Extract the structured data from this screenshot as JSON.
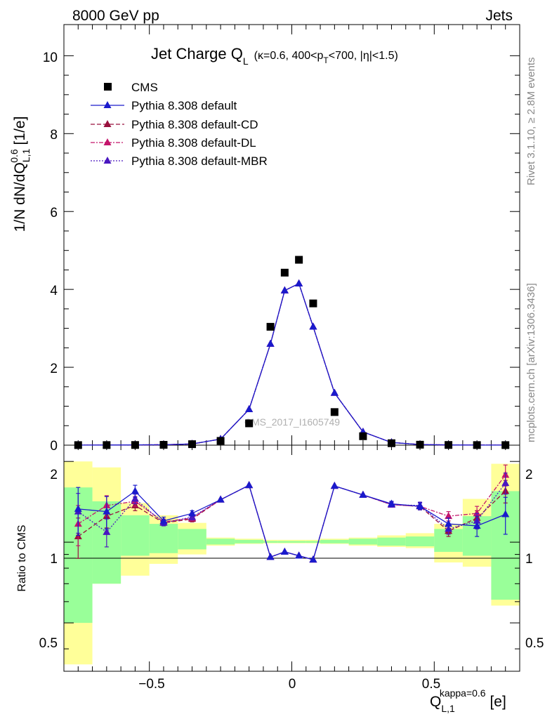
{
  "header": {
    "left": "8000 GeV pp",
    "right": "Jets"
  },
  "side_labels": {
    "rivet": "Rivet 3.1.10, ≥ 2.8M events",
    "mcplots": "mcplots.cern.ch [arXiv:1306.3436]"
  },
  "watermark": "CMS_2017_I1605749",
  "title": {
    "main": "Jet Charge Q",
    "main_sub": "L",
    "p1": "(κ=0.6, 400<p",
    "p1_sub": "T",
    "p2": "<700, |η|<1.5)"
  },
  "yaxis": {
    "main": "1/N dN/dQ",
    "sub": "L,1",
    "sup": "0.6",
    "unit": " [1/e]"
  },
  "ratio_ylabel": "Ratio to CMS",
  "xaxis": {
    "main": "Q",
    "sub": "L,1",
    "sup": "kappa=0.6",
    "unit": " [e]"
  },
  "colors": {
    "cms": "#000000",
    "default": "#1a1acc",
    "cd": "#99103d",
    "dl": "#c4156b",
    "mbr": "#4a17c0",
    "band_yellow": "#ffff99",
    "band_green": "#99ff99"
  },
  "chart_data": {
    "type": "scatter",
    "xlim": [
      -0.8,
      0.8
    ],
    "ylim": [
      0,
      10.8
    ],
    "ratio_ylim": [
      0.33,
      2.3
    ],
    "x_ticks": [
      "−0.5",
      "0",
      "0.5"
    ],
    "y_ticks": [
      "0",
      "2",
      "4",
      "6",
      "8",
      "10"
    ],
    "ratio_ticks": [
      "0.5",
      "1",
      "2"
    ],
    "x": [
      -0.75,
      -0.65,
      -0.55,
      -0.45,
      -0.35,
      -0.25,
      -0.15,
      -0.075,
      -0.025,
      0.025,
      0.075,
      0.15,
      0.25,
      0.35,
      0.45,
      0.55,
      0.65,
      0.75
    ],
    "bin_edges": [
      -0.8,
      -0.7,
      -0.6,
      -0.5,
      -0.4,
      -0.3,
      -0.2,
      -0.1,
      -0.05,
      0.0,
      0.05,
      0.1,
      0.2,
      0.3,
      0.4,
      0.5,
      0.6,
      0.7,
      0.8
    ],
    "series": [
      {
        "key": "cms",
        "name": "CMS",
        "values": [
          0.0015,
          0.0025,
          0.0045,
          0.009,
          0.025,
          0.11,
          0.56,
          3.04,
          4.43,
          4.76,
          3.64,
          0.85,
          0.23,
          0.05,
          0.012,
          0.005,
          0.0025,
          0.0015
        ]
      },
      {
        "key": "default",
        "name": "Pythia 8.308 default",
        "values": [
          0.002,
          0.003,
          0.007,
          0.011,
          0.032,
          0.156,
          0.92,
          2.6,
          3.97,
          4.15,
          3.04,
          1.34,
          0.34,
          0.069,
          0.016,
          0.006,
          0.0029,
          0.0019
        ],
        "ratio": [
          1.33,
          1.3,
          1.55,
          1.2,
          1.28,
          1.44,
          1.63,
          0.88,
          0.92,
          0.89,
          0.86,
          1.62,
          1.5,
          1.39,
          1.36,
          1.17,
          1.15,
          1.27
        ],
        "ratio_err": [
          0.27,
          0.18,
          0.08,
          0.04,
          0.03,
          0.02,
          0.02,
          0.01,
          0.01,
          0.01,
          0.01,
          0.02,
          0.02,
          0.03,
          0.04,
          0.06,
          0.1,
          0.2
        ]
      },
      {
        "key": "cd",
        "name": "Pythia 8.308 default-CD",
        "values": [
          0.0017,
          0.0031,
          0.0062,
          0.0106,
          0.031,
          0.156,
          0.92,
          2.6,
          3.97,
          4.15,
          3.04,
          1.34,
          0.34,
          0.069,
          0.016,
          0.006,
          0.003,
          0.0023
        ],
        "ratio": [
          1.05,
          1.25,
          1.37,
          1.18,
          1.22,
          1.44,
          1.63,
          0.88,
          0.92,
          0.89,
          0.86,
          1.62,
          1.5,
          1.38,
          1.36,
          1.1,
          1.23,
          1.55
        ],
        "ratio_err": [
          0.18,
          0.12,
          0.06,
          0.03,
          0.03,
          0.02,
          0.02,
          0.01,
          0.01,
          0.01,
          0.01,
          0.02,
          0.02,
          0.03,
          0.04,
          0.05,
          0.08,
          0.15
        ]
      },
      {
        "key": "dl",
        "name": "Pythia 8.308 default-DL",
        "values": [
          0.0018,
          0.0034,
          0.0064,
          0.0107,
          0.031,
          0.156,
          0.92,
          2.6,
          3.97,
          4.15,
          3.04,
          1.34,
          0.34,
          0.069,
          0.016,
          0.0062,
          0.0031,
          0.0026
        ],
        "ratio": [
          1.17,
          1.37,
          1.42,
          1.19,
          1.23,
          1.44,
          1.63,
          0.88,
          0.92,
          0.89,
          0.86,
          1.62,
          1.5,
          1.38,
          1.36,
          1.25,
          1.28,
          1.78
        ],
        "ratio_err": [
          0.2,
          0.12,
          0.06,
          0.03,
          0.03,
          0.02,
          0.02,
          0.01,
          0.01,
          0.01,
          0.01,
          0.02,
          0.02,
          0.03,
          0.04,
          0.05,
          0.08,
          0.16
        ]
      },
      {
        "key": "mbr",
        "name": "Pythia 8.308 default-MBR",
        "values": [
          0.0019,
          0.0027,
          0.0066,
          0.0107,
          0.031,
          0.156,
          0.92,
          2.6,
          3.97,
          4.15,
          3.04,
          1.34,
          0.34,
          0.069,
          0.016,
          0.0058,
          0.003,
          0.0025
        ],
        "ratio": [
          1.3,
          1.09,
          1.45,
          1.18,
          1.24,
          1.44,
          1.63,
          0.88,
          0.92,
          0.89,
          0.86,
          1.62,
          1.5,
          1.38,
          1.37,
          1.12,
          1.2,
          1.66
        ],
        "ratio_err": [
          0.22,
          0.13,
          0.06,
          0.03,
          0.03,
          0.02,
          0.02,
          0.01,
          0.01,
          0.01,
          0.01,
          0.02,
          0.02,
          0.03,
          0.04,
          0.05,
          0.08,
          0.15
        ]
      }
    ],
    "ratio_band_yellow": [
      [
        0.35,
        2.0
      ],
      [
        0.7,
        1.9
      ],
      [
        0.75,
        1.4
      ],
      [
        0.83,
        1.26
      ],
      [
        0.9,
        1.18
      ],
      [
        0.97,
        1.04
      ],
      [
        0.985,
        1.03
      ],
      [
        0.99,
        1.02
      ],
      [
        0.99,
        1.02
      ],
      [
        0.99,
        1.02
      ],
      [
        0.99,
        1.02
      ],
      [
        0.985,
        1.03
      ],
      [
        0.97,
        1.04
      ],
      [
        0.96,
        1.06
      ],
      [
        0.95,
        1.08
      ],
      [
        0.84,
        1.17
      ],
      [
        0.81,
        1.45
      ],
      [
        0.58,
        1.96
      ]
    ],
    "ratio_band_green": [
      [
        0.5,
        1.6
      ],
      [
        0.7,
        1.42
      ],
      [
        0.89,
        1.26
      ],
      [
        0.91,
        1.17
      ],
      [
        0.94,
        1.12
      ],
      [
        0.98,
        1.03
      ],
      [
        0.99,
        1.02
      ],
      [
        0.995,
        1.01
      ],
      [
        0.995,
        1.01
      ],
      [
        0.995,
        1.01
      ],
      [
        0.995,
        1.01
      ],
      [
        0.99,
        1.02
      ],
      [
        0.98,
        1.03
      ],
      [
        0.97,
        1.04
      ],
      [
        0.965,
        1.05
      ],
      [
        0.92,
        1.12
      ],
      [
        0.89,
        1.25
      ],
      [
        0.61,
        1.55
      ]
    ]
  }
}
